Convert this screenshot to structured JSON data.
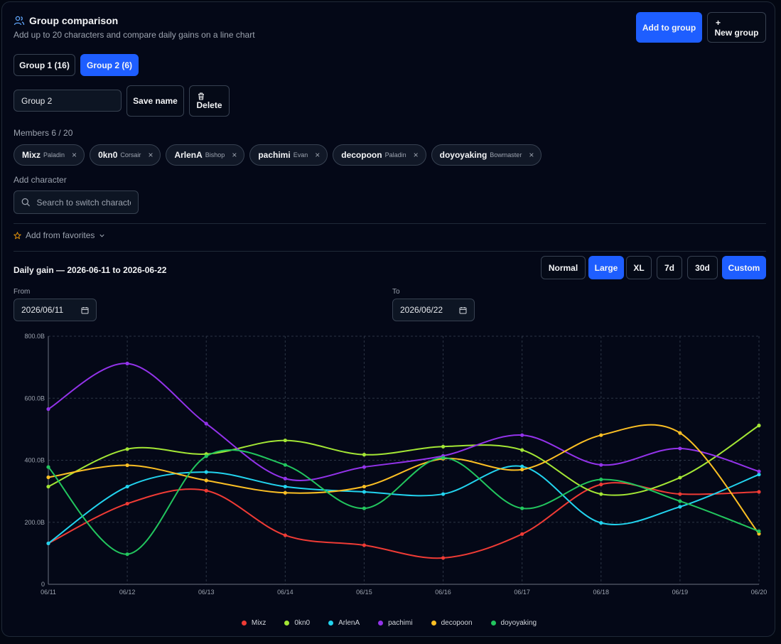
{
  "header": {
    "title": "Group comparison",
    "subtitle": "Add up to 20 characters and compare daily gains on a line chart",
    "add_to_group": "Add to group",
    "new_group_plus": "+",
    "new_group": "New group"
  },
  "groups": [
    {
      "label": "Group 1 (16)",
      "active": false
    },
    {
      "label": "Group 2 (6)",
      "active": true
    }
  ],
  "name_field": {
    "value": "Group 2",
    "save": "Save name",
    "delete": "Delete"
  },
  "members": {
    "label": "Members 6 / 20",
    "items": [
      {
        "name": "Mixz",
        "class": "Paladin"
      },
      {
        "name": "0kn0",
        "class": "Corsair"
      },
      {
        "name": "ArlenA",
        "class": "Bishop"
      },
      {
        "name": "pachimi",
        "class": "Evan"
      },
      {
        "name": "decopoon",
        "class": "Paladin"
      },
      {
        "name": "doyoyaking",
        "class": "Bowmaster"
      }
    ],
    "remove_glyph": "×"
  },
  "add_character": {
    "label": "Add character",
    "placeholder": "Search to switch characte"
  },
  "favorites": {
    "label": "Add from favorites"
  },
  "size_buttons": [
    {
      "label": "Normal",
      "active": false
    },
    {
      "label": "Large",
      "active": true
    },
    {
      "label": "XL",
      "active": false
    }
  ],
  "range_buttons": [
    {
      "label": "7d",
      "active": false
    },
    {
      "label": "30d",
      "active": false
    },
    {
      "label": "Custom",
      "active": true
    }
  ],
  "from": {
    "label": "From",
    "value": "2026/06/11"
  },
  "to": {
    "label": "To",
    "value": "2026/06/22"
  },
  "colors": {
    "accent": "#1e5eff",
    "favorites_star": "#f59e0b"
  },
  "chart_data": {
    "type": "line",
    "title": "Daily gain — 2026-06-11 to 2026-06-22",
    "categories": [
      "06/11",
      "06/12",
      "06/13",
      "06/14",
      "06/15",
      "06/16",
      "06/17",
      "06/18",
      "06/19",
      "06/20"
    ],
    "ylim": [
      0,
      800
    ],
    "yticks": [
      0,
      200,
      400,
      600,
      800
    ],
    "ytick_labels": [
      "0",
      "200.0B",
      "400.0B",
      "600.0B",
      "800.0B"
    ],
    "grid": true,
    "legend_position": "bottom",
    "series": [
      {
        "name": "Mixz",
        "color": "#ef3b35",
        "values": [
          132,
          260,
          302,
          158,
          126,
          85,
          162,
          322,
          291,
          298
        ]
      },
      {
        "name": "0kn0",
        "color": "#a3e635",
        "values": [
          315,
          436,
          420,
          464,
          418,
          444,
          433,
          291,
          344,
          512
        ]
      },
      {
        "name": "ArlenA",
        "color": "#22d3ee",
        "values": [
          132,
          315,
          362,
          315,
          298,
          291,
          380,
          198,
          250,
          354
        ]
      },
      {
        "name": "pachimi",
        "color": "#9333ea",
        "values": [
          565,
          712,
          518,
          341,
          378,
          414,
          481,
          385,
          438,
          364
        ]
      },
      {
        "name": "decopoon",
        "color": "#fbbf24",
        "values": [
          345,
          384,
          335,
          295,
          315,
          405,
          370,
          481,
          488,
          163
        ]
      },
      {
        "name": "doyoyaking",
        "color": "#22c55e",
        "values": [
          378,
          97,
          413,
          385,
          245,
          408,
          245,
          338,
          268,
          171
        ]
      }
    ]
  }
}
